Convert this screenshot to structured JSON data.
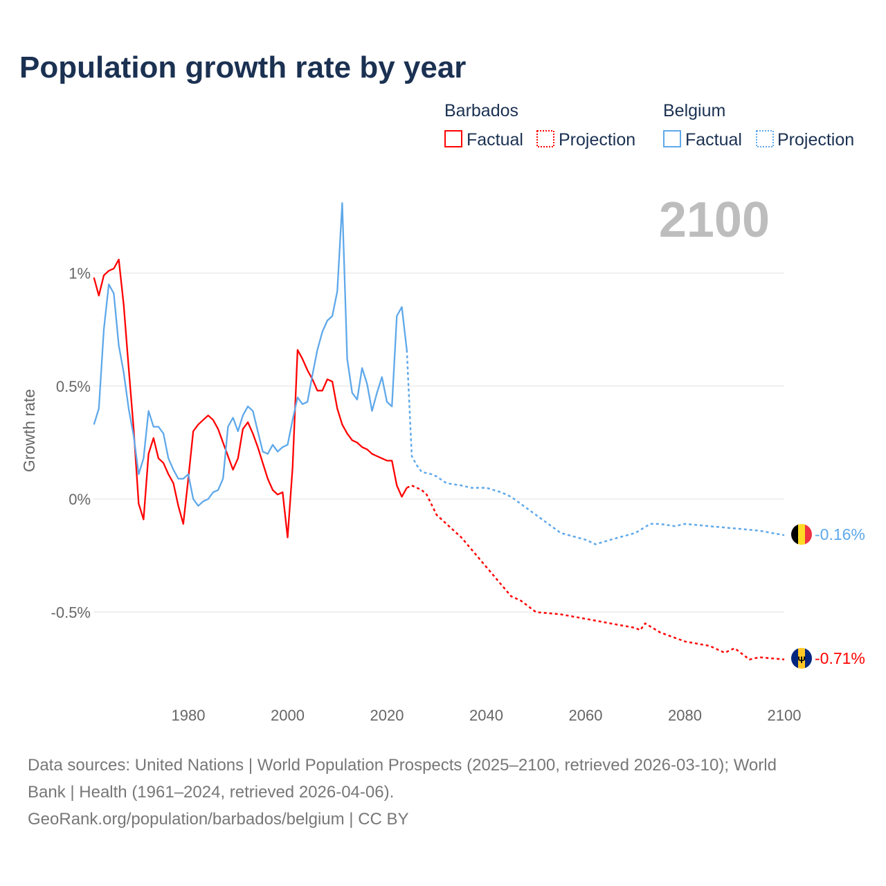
{
  "title": "Population growth rate by year",
  "year_label": "2100",
  "legend": {
    "groups": [
      {
        "name": "Barbados",
        "factual": "Factual",
        "projection": "Projection"
      },
      {
        "name": "Belgium",
        "factual": "Factual",
        "projection": "Projection"
      }
    ]
  },
  "end_labels": {
    "belgium": "-0.16%",
    "barbados": "-0.71%"
  },
  "sources": [
    "Data sources: United Nations | World Population Prospects (2025–2100, retrieved 2026-03-10); World",
    "Bank | Health (1961–2024, retrieved 2026-04-06).",
    "GeoRank.org/population/barbados/belgium | CC BY"
  ],
  "colors": {
    "barbados": "#ff0000",
    "belgium": "#5ea8ea",
    "grid": "#e6e6e6"
  },
  "chart_data": {
    "type": "line",
    "title": "Population growth rate by year",
    "xlabel": "",
    "ylabel": "Growth rate",
    "xlim": [
      1961,
      2100
    ],
    "ylim": [
      -0.8,
      1.35
    ],
    "x_ticks": [
      1980,
      2000,
      2020,
      2040,
      2060,
      2080,
      2100
    ],
    "y_ticks": [
      {
        "v": 1,
        "label": "1%"
      },
      {
        "v": 0.5,
        "label": "0.5%"
      },
      {
        "v": 0,
        "label": "0%"
      },
      {
        "v": -0.5,
        "label": "-0.5%"
      }
    ],
    "series": [
      {
        "name": "Barbados",
        "kind": "Factual",
        "start": 1961,
        "values": [
          0.98,
          0.9,
          0.99,
          1.01,
          1.02,
          1.06,
          0.86,
          0.58,
          0.31,
          -0.02,
          -0.09,
          0.2,
          0.27,
          0.18,
          0.16,
          0.11,
          0.07,
          -0.03,
          -0.11,
          0.09,
          0.3,
          0.33,
          0.35,
          0.37,
          0.35,
          0.31,
          0.25,
          0.19,
          0.13,
          0.18,
          0.31,
          0.34,
          0.29,
          0.23,
          0.16,
          0.09,
          0.04,
          0.02,
          0.03,
          -0.17,
          0.14,
          0.66,
          0.62,
          0.57,
          0.53,
          0.48,
          0.48,
          0.53,
          0.52,
          0.4,
          0.33,
          0.29,
          0.26,
          0.25,
          0.23,
          0.22,
          0.2,
          0.19,
          0.18,
          0.17,
          0.17,
          0.06,
          0.01,
          0.05
        ]
      },
      {
        "name": "Belgium",
        "kind": "Factual",
        "start": 1961,
        "values": [
          0.33,
          0.4,
          0.75,
          0.95,
          0.91,
          0.68,
          0.56,
          0.4,
          0.28,
          0.11,
          0.18,
          0.39,
          0.32,
          0.32,
          0.29,
          0.18,
          0.13,
          0.09,
          0.09,
          0.11,
          0.0,
          -0.03,
          -0.01,
          0.0,
          0.03,
          0.04,
          0.09,
          0.32,
          0.36,
          0.3,
          0.37,
          0.41,
          0.39,
          0.3,
          0.21,
          0.2,
          0.24,
          0.21,
          0.23,
          0.24,
          0.35,
          0.45,
          0.42,
          0.43,
          0.55,
          0.66,
          0.74,
          0.79,
          0.81,
          0.92,
          1.31,
          0.62,
          0.47,
          0.44,
          0.58,
          0.51,
          0.39,
          0.47,
          0.54,
          0.43,
          0.41,
          0.81,
          0.85,
          0.66
        ]
      },
      {
        "name": "Barbados",
        "kind": "Projection",
        "points": [
          [
            2024,
            0.05
          ],
          [
            2025,
            0.06
          ],
          [
            2027,
            0.04
          ],
          [
            2028,
            0.02
          ],
          [
            2030,
            -0.07
          ],
          [
            2035,
            -0.17
          ],
          [
            2040,
            -0.3
          ],
          [
            2045,
            -0.43
          ],
          [
            2047,
            -0.45
          ],
          [
            2050,
            -0.5
          ],
          [
            2055,
            -0.51
          ],
          [
            2060,
            -0.53
          ],
          [
            2065,
            -0.55
          ],
          [
            2070,
            -0.57
          ],
          [
            2071,
            -0.58
          ],
          [
            2072,
            -0.55
          ],
          [
            2075,
            -0.59
          ],
          [
            2080,
            -0.63
          ],
          [
            2085,
            -0.65
          ],
          [
            2088,
            -0.68
          ],
          [
            2090,
            -0.66
          ],
          [
            2093,
            -0.71
          ],
          [
            2095,
            -0.7
          ],
          [
            2100,
            -0.71
          ]
        ]
      },
      {
        "name": "Belgium",
        "kind": "Projection",
        "points": [
          [
            2024,
            0.66
          ],
          [
            2025,
            0.19
          ],
          [
            2026,
            0.15
          ],
          [
            2027,
            0.12
          ],
          [
            2029,
            0.11
          ],
          [
            2030,
            0.1
          ],
          [
            2032,
            0.07
          ],
          [
            2035,
            0.06
          ],
          [
            2037,
            0.05
          ],
          [
            2040,
            0.05
          ],
          [
            2043,
            0.03
          ],
          [
            2045,
            0.01
          ],
          [
            2050,
            -0.07
          ],
          [
            2055,
            -0.15
          ],
          [
            2060,
            -0.18
          ],
          [
            2062,
            -0.2
          ],
          [
            2065,
            -0.18
          ],
          [
            2070,
            -0.15
          ],
          [
            2073,
            -0.11
          ],
          [
            2075,
            -0.11
          ],
          [
            2078,
            -0.12
          ],
          [
            2080,
            -0.11
          ],
          [
            2085,
            -0.12
          ],
          [
            2090,
            -0.13
          ],
          [
            2095,
            -0.14
          ],
          [
            2100,
            -0.16
          ]
        ]
      }
    ]
  }
}
